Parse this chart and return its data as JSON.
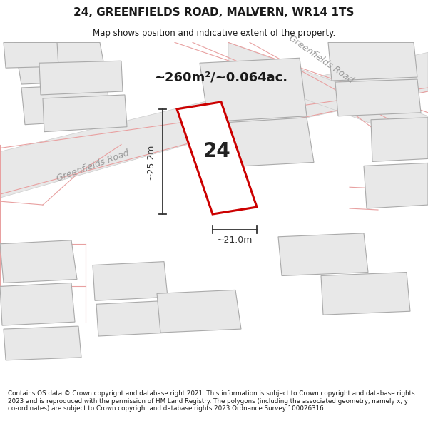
{
  "title": "24, GREENFIELDS ROAD, MALVERN, WR14 1TS",
  "subtitle": "Map shows position and indicative extent of the property.",
  "area_text": "~260m²/~0.064ac.",
  "number_label": "24",
  "dim_width": "~21.0m",
  "dim_height": "~25.2m",
  "footer": "Contains OS data © Crown copyright and database right 2021. This information is subject to Crown copyright and database rights 2023 and is reproduced with the permission of HM Land Registry. The polygons (including the associated geometry, namely x, y co-ordinates) are subject to Crown copyright and database rights 2023 Ordnance Survey 100026316.",
  "bg_color": "#ffffff",
  "map_bg": "#ffffff",
  "road_label_diag": "Greenfields Road",
  "road_label_horiz": "Greenfields Road",
  "title_color": "#1a1a1a",
  "footer_color": "#1a1a1a",
  "plot_color_edge": "#cc0000",
  "building_fill": "#e8e8e8",
  "building_edge": "#aaaaaa",
  "road_outline_color": "#e8a0a0",
  "dim_color": "#333333",
  "road_label_color": "#999999",
  "area_text_color": "#1a1a1a"
}
